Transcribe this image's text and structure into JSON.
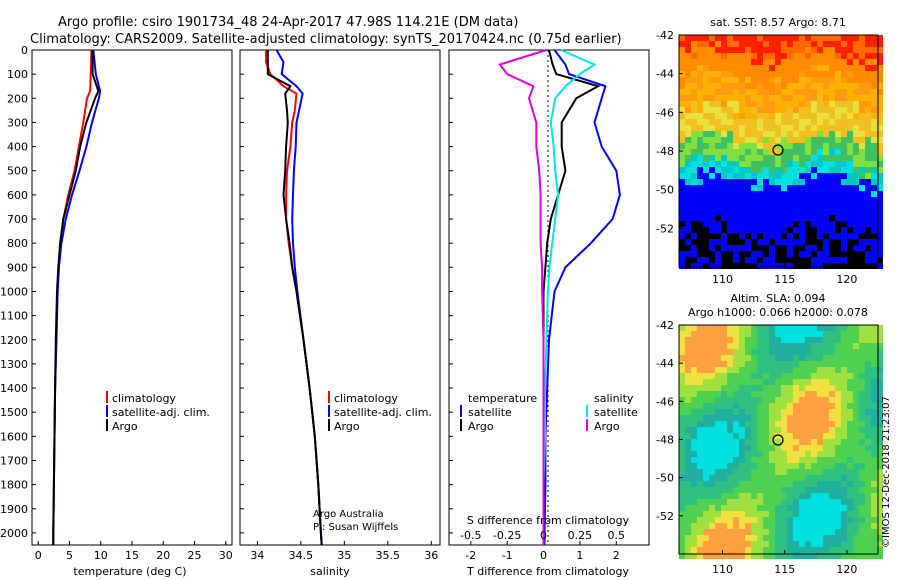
{
  "title_line1": "Argo profile: csiro 1901734_48 24-Apr-2017 47.98S 114.21E (DM data)",
  "title_line2": "Climatology: CARS2009. Satellite-adjusted climatology: synTS_20170424.nc (0.75d earlier)",
  "colors": {
    "climatology": "#ff0000",
    "satellite": "#0000ff",
    "argo": "#000000",
    "sal_sat": "#00e5e5",
    "sal_argo": "#e000e0"
  },
  "depth_ticks": [
    "0",
    "100",
    "200",
    "300",
    "400",
    "500",
    "600",
    "700",
    "800",
    "900",
    "1000",
    "1100",
    "1200",
    "1300",
    "1400",
    "1500",
    "1600",
    "1700",
    "1800",
    "1900",
    "2000"
  ],
  "panel_temp": {
    "xlabel": "temperature (deg C)",
    "xticks": [
      "0",
      "5",
      "10",
      "15",
      "20",
      "25",
      "30"
    ],
    "legend": {
      "climatology": "climatology",
      "satellite": "satellite-adj. clim.",
      "argo": "Argo"
    }
  },
  "panel_sal": {
    "xlabel": "salinity",
    "xticks": [
      "34",
      "34.5",
      "35",
      "35.5",
      "36"
    ],
    "legend": {
      "climatology": "climatology",
      "satellite": "satellite-adj. clim.",
      "argo": "Argo"
    },
    "credit1": "Argo Australia",
    "credit2": "PI: Susan Wijffels"
  },
  "panel_diff": {
    "xlabel": "T difference from climatology",
    "xticks": [
      "-2",
      "-1",
      "0",
      "1",
      "2"
    ],
    "s_label": "S difference from climatology",
    "s_ticks": [
      "-0.5",
      "-0.25",
      "0",
      "0.25",
      "0.5"
    ],
    "legend_left_title": "temperature",
    "legend_left": {
      "satellite": "satellite",
      "argo": "Argo"
    },
    "legend_right_title": "salinity",
    "legend_right": {
      "satellite": "satellite",
      "argo": "Argo"
    }
  },
  "map_sst": {
    "title": "sat. SST: 8.57 Argo: 8.71",
    "yticks": [
      "-42",
      "-44",
      "-46",
      "-48",
      "-50",
      "-52"
    ],
    "xticks": [
      "110",
      "115",
      "120"
    ]
  },
  "map_sla": {
    "title1": "Altim. SLA: 0.094",
    "title2": "Argo h1000: 0.066 h2000: 0.078",
    "yticks": [
      "-42",
      "-44",
      "-46",
      "-48",
      "-50",
      "-52"
    ],
    "xticks": [
      "110",
      "115",
      "120"
    ]
  },
  "watermark": "©IMOS 12-Dec-2018 21:23:07",
  "chart_data": {
    "type": "line",
    "depth_range": [
      0,
      2050
    ],
    "temperature": {
      "xlim": [
        -1,
        31
      ],
      "depth": [
        0,
        100,
        170,
        200,
        300,
        400,
        500,
        600,
        700,
        800,
        900,
        1000,
        1200,
        1400,
        1600,
        1800,
        2000,
        2050
      ],
      "climatology": [
        8.5,
        8.4,
        8.3,
        7.8,
        7.2,
        6.5,
        5.8,
        4.8,
        4.0,
        3.6,
        3.3,
        3.1,
        2.9,
        2.7,
        2.6,
        2.5,
        2.4,
        2.4
      ],
      "satellite": [
        8.8,
        9.2,
        9.9,
        9.7,
        8.6,
        7.7,
        6.6,
        5.4,
        4.4,
        3.7,
        3.3,
        3.1,
        2.9,
        2.7,
        2.6,
        2.5,
        2.4,
        2.4
      ],
      "argo": [
        8.7,
        8.7,
        9.6,
        9.1,
        7.7,
        6.7,
        6.0,
        5.0,
        4.0,
        3.5,
        3.2,
        3.0,
        2.8,
        2.7,
        2.6,
        2.5,
        2.4,
        2.4
      ]
    },
    "salinity": {
      "xlim": [
        33.8,
        36.1
      ],
      "depth": [
        0,
        50,
        100,
        150,
        180,
        250,
        300,
        400,
        500,
        600,
        700,
        800,
        900,
        1000,
        1200,
        1400,
        1600,
        1800,
        2000,
        2050
      ],
      "climatology": [
        34.1,
        34.1,
        34.15,
        34.3,
        34.45,
        34.43,
        34.4,
        34.38,
        34.34,
        34.33,
        34.33,
        34.36,
        34.4,
        34.45,
        34.53,
        34.6,
        34.66,
        34.7,
        34.73,
        34.74
      ],
      "satellite": [
        34.22,
        34.3,
        34.28,
        34.45,
        34.52,
        34.48,
        34.45,
        34.44,
        34.42,
        34.41,
        34.4,
        34.41,
        34.43,
        34.46,
        34.53,
        34.6,
        34.66,
        34.7,
        34.73,
        34.74
      ],
      "argo": [
        34.12,
        34.12,
        34.12,
        34.38,
        34.32,
        34.34,
        34.35,
        34.33,
        34.32,
        34.3,
        34.33,
        34.37,
        34.4,
        34.45,
        34.53,
        34.6,
        34.66,
        34.7,
        34.73,
        34.74
      ]
    },
    "difference": {
      "t_xlim": [
        -2.6,
        2.9
      ],
      "s_xlim": [
        -0.65,
        0.725
      ],
      "depth": [
        0,
        60,
        100,
        150,
        200,
        300,
        400,
        500,
        600,
        700,
        800,
        900,
        1000,
        1200,
        1400,
        1600,
        1800,
        2000,
        2050
      ],
      "t_satellite": [
        0.3,
        0.6,
        0.7,
        1.7,
        1.6,
        1.4,
        1.6,
        2.0,
        2.1,
        1.9,
        1.3,
        0.6,
        0.3,
        0.15,
        0.1,
        0.05,
        0.05,
        0.03,
        0.03
      ],
      "t_argo": [
        0.15,
        0.25,
        0.35,
        1.5,
        0.9,
        0.5,
        0.5,
        0.6,
        0.4,
        0.2,
        0.1,
        0.05,
        0.0,
        0.0,
        0.0,
        0.0,
        0.0,
        0.0,
        0.0
      ],
      "s_satellite": [
        0.12,
        0.35,
        0.25,
        0.15,
        0.08,
        0.05,
        0.07,
        0.08,
        0.1,
        0.08,
        0.06,
        0.04,
        0.03,
        0.02,
        0.01,
        0.01,
        0.0,
        0.0,
        0.0
      ],
      "s_argo": [
        0.02,
        -0.3,
        -0.25,
        -0.07,
        -0.1,
        -0.05,
        -0.05,
        -0.03,
        -0.02,
        -0.02,
        -0.02,
        -0.01,
        -0.01,
        0.0,
        0.0,
        0.0,
        0.0,
        0.0,
        0.0
      ]
    },
    "maps": {
      "lon_range": [
        106.5,
        122.5
      ],
      "lat_range": [
        -54,
        -42
      ],
      "profile_location": {
        "lon": 114.21,
        "lat": -47.98
      }
    }
  }
}
